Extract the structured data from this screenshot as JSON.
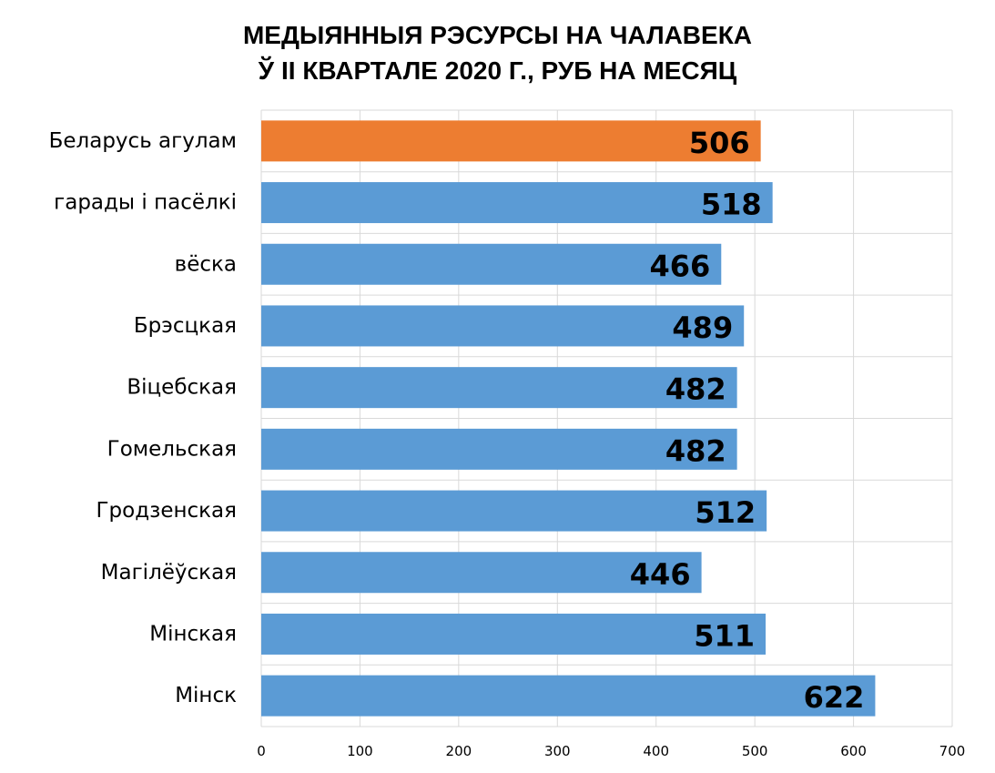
{
  "chart_data": {
    "type": "bar",
    "orientation": "horizontal",
    "title_line1": "МЕДЫЯННЫЯ РЭСУРСЫ НА ЧАЛАВЕКА",
    "title_line2": "Ў II КВАРТАЛЕ 2020 Г., РУБ НА МЕСЯЦ",
    "xlabel": "",
    "ylabel": "",
    "xlim": [
      0,
      700
    ],
    "x_ticks": [
      0,
      100,
      200,
      300,
      400,
      500,
      600,
      700
    ],
    "grid": true,
    "legend": "none",
    "categories": [
      "Беларусь агулам",
      "гарады і пасёлкі",
      "вёска",
      "Брэсцкая",
      "Віцебская",
      "Гомельская",
      "Гродзенская",
      "Магілёўская",
      "Мінская",
      "Мінск"
    ],
    "values": [
      506,
      518,
      466,
      489,
      482,
      482,
      512,
      446,
      511,
      622
    ],
    "highlight_index": 0,
    "colors": {
      "highlight": "#ED7D31",
      "bar": "#5B9BD5",
      "grid": "#D9D9D9"
    }
  }
}
